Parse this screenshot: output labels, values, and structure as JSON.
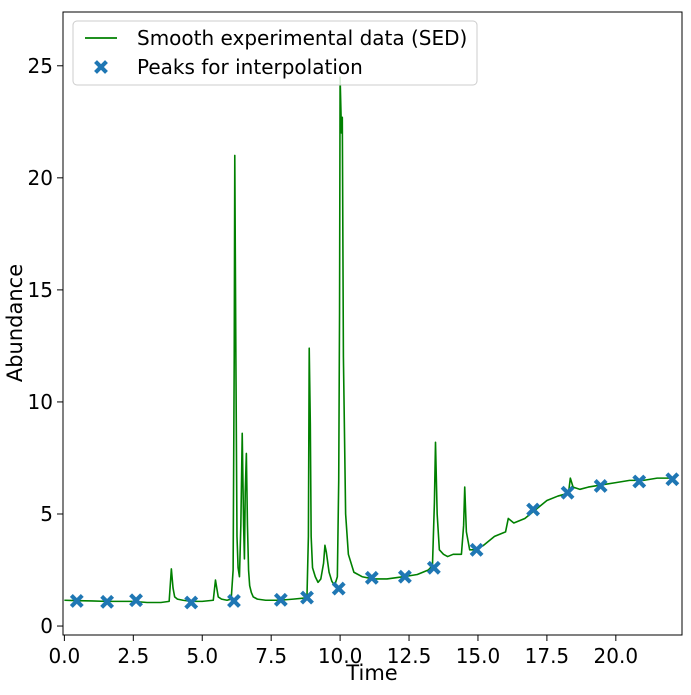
{
  "chart_data": {
    "type": "line",
    "title": "",
    "xlabel": "Time",
    "ylabel": "Abundance",
    "xlim": [
      -0.05,
      22.4
    ],
    "ylim": [
      -0.4,
      27.4
    ],
    "xticks": [
      0.0,
      2.5,
      5.0,
      7.5,
      10.0,
      12.5,
      15.0,
      17.5,
      20.0
    ],
    "xtick_labels": [
      "0.0",
      "2.5",
      "5.0",
      "7.5",
      "10.0",
      "12.5",
      "15.0",
      "17.5",
      "20.0"
    ],
    "yticks": [
      0,
      5,
      10,
      15,
      20,
      25
    ],
    "ytick_labels": [
      "0",
      "5",
      "10",
      "15",
      "20",
      "25"
    ],
    "grid": false,
    "legend": {
      "position": "top-left",
      "entries": [
        {
          "label": "Smooth experimental data (SED)",
          "kind": "line",
          "color": "#008000"
        },
        {
          "label": "Peaks for interpolation",
          "kind": "marker",
          "color": "#1f77b4"
        }
      ]
    },
    "series": [
      {
        "name": "Smooth experimental data (SED)",
        "kind": "line",
        "color": "#008000",
        "x": [
          0.0,
          0.5,
          1.0,
          1.5,
          2.0,
          2.5,
          3.0,
          3.5,
          3.8,
          3.88,
          3.94,
          4.0,
          4.1,
          4.3,
          4.6,
          5.0,
          5.4,
          5.48,
          5.52,
          5.58,
          5.7,
          5.9,
          6.05,
          6.12,
          6.16,
          6.18,
          6.22,
          6.26,
          6.3,
          6.35,
          6.4,
          6.45,
          6.5,
          6.53,
          6.56,
          6.6,
          6.64,
          6.68,
          6.72,
          6.78,
          6.85,
          7.0,
          7.3,
          7.8,
          8.3,
          8.7,
          8.8,
          8.85,
          8.88,
          8.92,
          8.95,
          9.0,
          9.1,
          9.2,
          9.3,
          9.4,
          9.45,
          9.5,
          9.6,
          9.7,
          9.8,
          9.9,
          9.95,
          9.98,
          10.0,
          10.05,
          10.08,
          10.12,
          10.2,
          10.3,
          10.5,
          10.8,
          11.2,
          11.7,
          12.3,
          12.8,
          13.2,
          13.35,
          13.42,
          13.46,
          13.52,
          13.6,
          13.75,
          13.9,
          14.1,
          14.4,
          14.48,
          14.52,
          14.58,
          14.7,
          14.9,
          15.2,
          15.6,
          16.0,
          16.1,
          16.3,
          16.7,
          17.1,
          17.5,
          17.9,
          18.2,
          18.3,
          18.35,
          18.45,
          18.7,
          19.0,
          19.5,
          20.0,
          20.5,
          21.0,
          21.5,
          22.0,
          22.2
        ],
        "y": [
          1.15,
          1.13,
          1.12,
          1.1,
          1.1,
          1.1,
          1.05,
          1.05,
          1.1,
          2.55,
          1.7,
          1.3,
          1.2,
          1.15,
          1.1,
          1.1,
          1.15,
          2.05,
          1.75,
          1.3,
          1.2,
          1.15,
          1.2,
          2.5,
          12.0,
          21.0,
          12.0,
          4.0,
          2.6,
          2.2,
          4.5,
          8.6,
          4.5,
          3.0,
          6.0,
          7.7,
          4.5,
          2.5,
          1.8,
          1.5,
          1.3,
          1.2,
          1.15,
          1.15,
          1.2,
          1.25,
          1.4,
          4.0,
          12.4,
          9.0,
          4.0,
          2.6,
          2.2,
          1.95,
          2.1,
          2.8,
          3.6,
          3.3,
          2.4,
          2.0,
          1.8,
          2.2,
          6.5,
          14.0,
          24.5,
          22.0,
          22.7,
          12.0,
          5.0,
          3.2,
          2.4,
          2.2,
          2.1,
          2.1,
          2.2,
          2.3,
          2.5,
          2.7,
          5.5,
          8.2,
          5.0,
          3.4,
          3.2,
          3.1,
          3.2,
          3.2,
          4.5,
          6.2,
          4.2,
          3.4,
          3.4,
          3.6,
          4.0,
          4.2,
          4.8,
          4.6,
          4.8,
          5.2,
          5.6,
          5.8,
          5.9,
          6.1,
          6.6,
          6.2,
          6.1,
          6.2,
          6.3,
          6.4,
          6.5,
          6.5,
          6.6,
          6.6,
          6.7
        ]
      },
      {
        "name": "Peaks for interpolation",
        "kind": "scatter",
        "color": "#1f77b4",
        "x": [
          0.45,
          1.55,
          2.6,
          4.6,
          6.15,
          7.85,
          8.8,
          9.95,
          11.15,
          12.35,
          13.4,
          14.95,
          17.0,
          18.25,
          19.45,
          20.85,
          22.05
        ],
        "y": [
          1.12,
          1.08,
          1.15,
          1.05,
          1.12,
          1.17,
          1.27,
          1.67,
          2.15,
          2.2,
          2.6,
          3.4,
          5.2,
          5.95,
          6.25,
          6.45,
          6.55
        ]
      }
    ]
  }
}
